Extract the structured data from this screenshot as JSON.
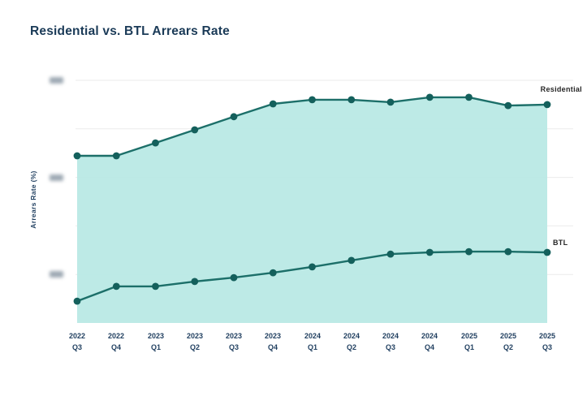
{
  "chart": {
    "title": "Residential vs. BTL Arrears Rate",
    "title_color": "#1a3a57",
    "y_axis": {
      "label": "Arrears Rate (%)",
      "tick_labels_redacted": true,
      "redacted_tick_values": [
        100,
        60,
        20
      ],
      "gridline_values": [
        100,
        80,
        60,
        40,
        20
      ]
    },
    "colors": {
      "line": "#1c6f69",
      "marker": "#14605c",
      "area_fill": "#b7e8e4",
      "gridline": "#ebebeb",
      "axis_text": "#1f3e5f",
      "redacted_tick": "#8d9aa6"
    }
  },
  "chart_data": {
    "type": "area",
    "title": "Residential vs. BTL Arrears Rate",
    "xlabel": "",
    "ylabel": "Arrears Rate (%)",
    "ylim": [
      0,
      105
    ],
    "grid": true,
    "legend_position": "inline-end-labels",
    "y_tick_labels_blurred_in_source": true,
    "y_scale_note_values_normalized_0_100": true,
    "categories": [
      [
        "2022",
        "Q3"
      ],
      [
        "2022",
        "Q4"
      ],
      [
        "2023",
        "Q1"
      ],
      [
        "2023",
        "Q2"
      ],
      [
        "2023",
        "Q3"
      ],
      [
        "2023",
        "Q4"
      ],
      [
        "2024",
        "Q1"
      ],
      [
        "2024",
        "Q2"
      ],
      [
        "2024",
        "Q3"
      ],
      [
        "2024",
        "Q4"
      ],
      [
        "2025",
        "Q1"
      ],
      [
        "2025",
        "Q2"
      ],
      [
        "2025",
        "Q3"
      ]
    ],
    "series": [
      {
        "name": "Residential",
        "area_filled": true,
        "values": [
          68.9,
          68.9,
          74.2,
          79.6,
          85.0,
          90.3,
          92.0,
          92.0,
          91.0,
          93.0,
          93.0,
          89.6,
          90.0
        ]
      },
      {
        "name": "BTL",
        "area_filled": false,
        "values": [
          9.0,
          15.1,
          15.1,
          17.1,
          18.7,
          20.7,
          23.1,
          25.8,
          28.4,
          29.1,
          29.4,
          29.4,
          29.1
        ]
      }
    ]
  }
}
